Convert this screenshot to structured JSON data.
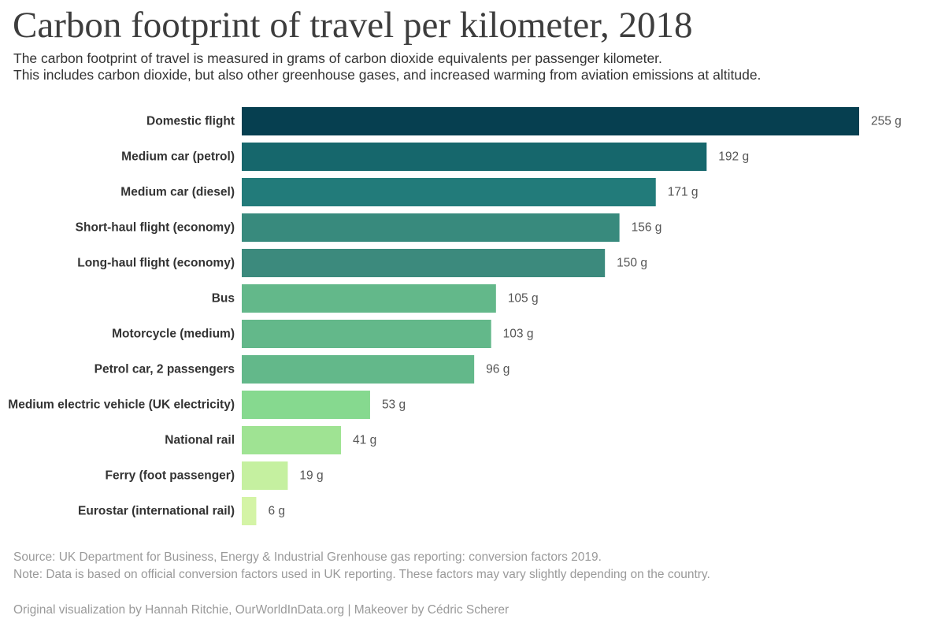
{
  "title": "Carbon footprint of travel per kilometer, 2018",
  "subtitle": {
    "line1": "The carbon footprint of travel is measured in grams of carbon dioxide equivalents per passenger kilometer.",
    "line2": "This includes carbon dioxide, but also other greenhouse gases, and increased warming from aviation emissions at altitude."
  },
  "footer": {
    "source": "Source: UK Department for Business, Energy & Industrial Grenhouse gas reporting: conversion factors 2019.",
    "note": "Note: Data is based on official conversion factors used in UK reporting. These factors may vary slightly depending on the country.",
    "credit": "Original visualization by Hannah Ritchie, OurWorldInData.org | Makeover by Cédric Scherer"
  },
  "chart_data": {
    "type": "bar",
    "orientation": "horizontal",
    "unit": "g",
    "categories": [
      "Domestic flight",
      "Medium car (petrol)",
      "Medium car (diesel)",
      "Short-haul flight (economy)",
      "Long-haul flight (economy)",
      "Bus",
      "Motorcycle (medium)",
      "Petrol car, 2 passengers",
      "Medium electric vehicle (UK electricity)",
      "National rail",
      "Ferry (foot passenger)",
      "Eurostar (international rail)"
    ],
    "values": [
      255,
      192,
      171,
      156,
      150,
      105,
      103,
      96,
      53,
      41,
      19,
      6
    ],
    "value_labels": [
      "255 g",
      "192 g",
      "171 g",
      "156 g",
      "150 g",
      "105 g",
      "103 g",
      "96 g",
      "53 g",
      "41 g",
      "19 g",
      "6 g"
    ],
    "colors": [
      "#063f50",
      "#16676c",
      "#227b7a",
      "#388a7d",
      "#3c8a7d",
      "#63b88a",
      "#63b88a",
      "#63b88a",
      "#86d98f",
      "#9fe393",
      "#c5f0a0",
      "#d4f4a6"
    ],
    "xlim": [
      0,
      255
    ],
    "grid": false,
    "legend": "none"
  }
}
